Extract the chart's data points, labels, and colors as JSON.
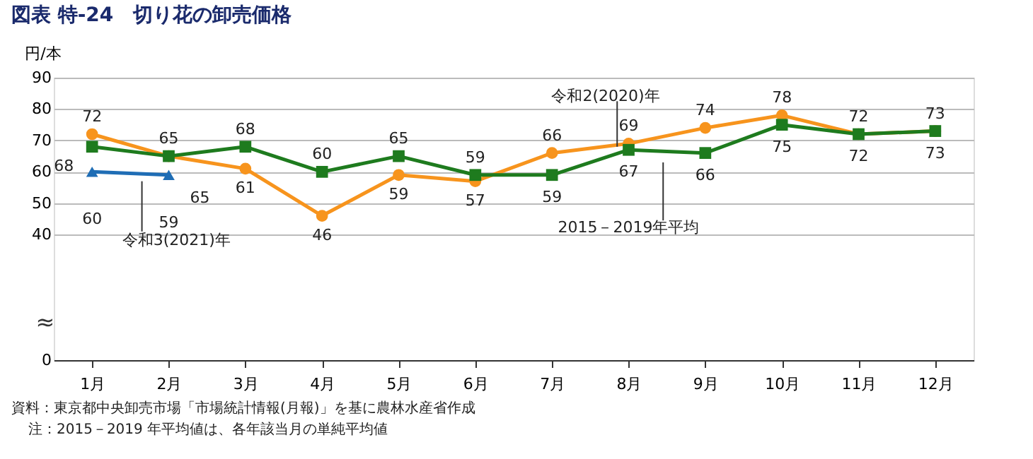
{
  "chart_data": {
    "type": "line",
    "title": "図表 特-24　切り花の卸売価格",
    "ylabel": "円/本",
    "categories": [
      "1月",
      "2月",
      "3月",
      "4月",
      "5月",
      "6月",
      "7月",
      "8月",
      "9月",
      "10月",
      "11月",
      "12月"
    ],
    "series": [
      {
        "name": "令和2(2020)年",
        "color": "#f7941d",
        "marker": "circle",
        "values": [
          72,
          65,
          61,
          46,
          59,
          57,
          66,
          69,
          74,
          78,
          72,
          73
        ]
      },
      {
        "name": "2015－2019年平均",
        "color": "#1e7b1e",
        "marker": "square",
        "values": [
          68,
          65,
          68,
          60,
          65,
          59,
          59,
          67,
          66,
          75,
          72,
          73
        ]
      },
      {
        "name": "令和3(2021)年",
        "color": "#1f6db5",
        "marker": "triangle",
        "values": [
          60,
          59,
          null,
          null,
          null,
          null,
          null,
          null,
          null,
          null,
          null,
          null
        ]
      }
    ],
    "ylim": [
      0,
      90
    ],
    "yticks": [
      0,
      40,
      50,
      60,
      70,
      80,
      90
    ],
    "grid": "y",
    "legend": false,
    "data_labels": true,
    "line_style": "solid",
    "annotations": [
      "≈",
      "資料：東京都中央卸売市場「市場統計情報(月報)」を基に農林水産省作成",
      "注：2015－2019 年平均値は、各年該当月の単純平均値"
    ]
  }
}
